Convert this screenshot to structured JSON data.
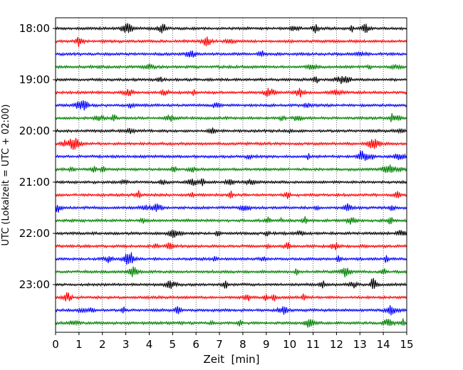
{
  "chart_data": {
    "type": "line",
    "title": "",
    "xlabel": "Zeit  [min]",
    "ylabel": "UTC (Lokalzeit = UTC + 02:00)",
    "xlim": [
      0,
      15
    ],
    "x_ticks": [
      "0",
      "1",
      "2",
      "3",
      "4",
      "5",
      "6",
      "7",
      "8",
      "9",
      "10",
      "11",
      "12",
      "13",
      "14",
      "15"
    ],
    "y_ticks": [
      "18:00",
      "19:00",
      "20:00",
      "21:00",
      "22:00",
      "23:00"
    ],
    "grid": "vertical dotted at each minute",
    "trace_interval_minutes": 15,
    "trace_colors": [
      "#000000",
      "#ff0000",
      "#0000ff",
      "#008000"
    ],
    "traces": [
      "18:00",
      "18:15",
      "18:30",
      "18:45",
      "19:00",
      "19:15",
      "19:30",
      "19:45",
      "20:00",
      "20:15",
      "20:30",
      "20:45",
      "21:00",
      "21:15",
      "21:30",
      "21:45",
      "22:00",
      "22:15",
      "22:30",
      "22:45",
      "23:00",
      "23:15",
      "23:30",
      "23:45"
    ]
  }
}
